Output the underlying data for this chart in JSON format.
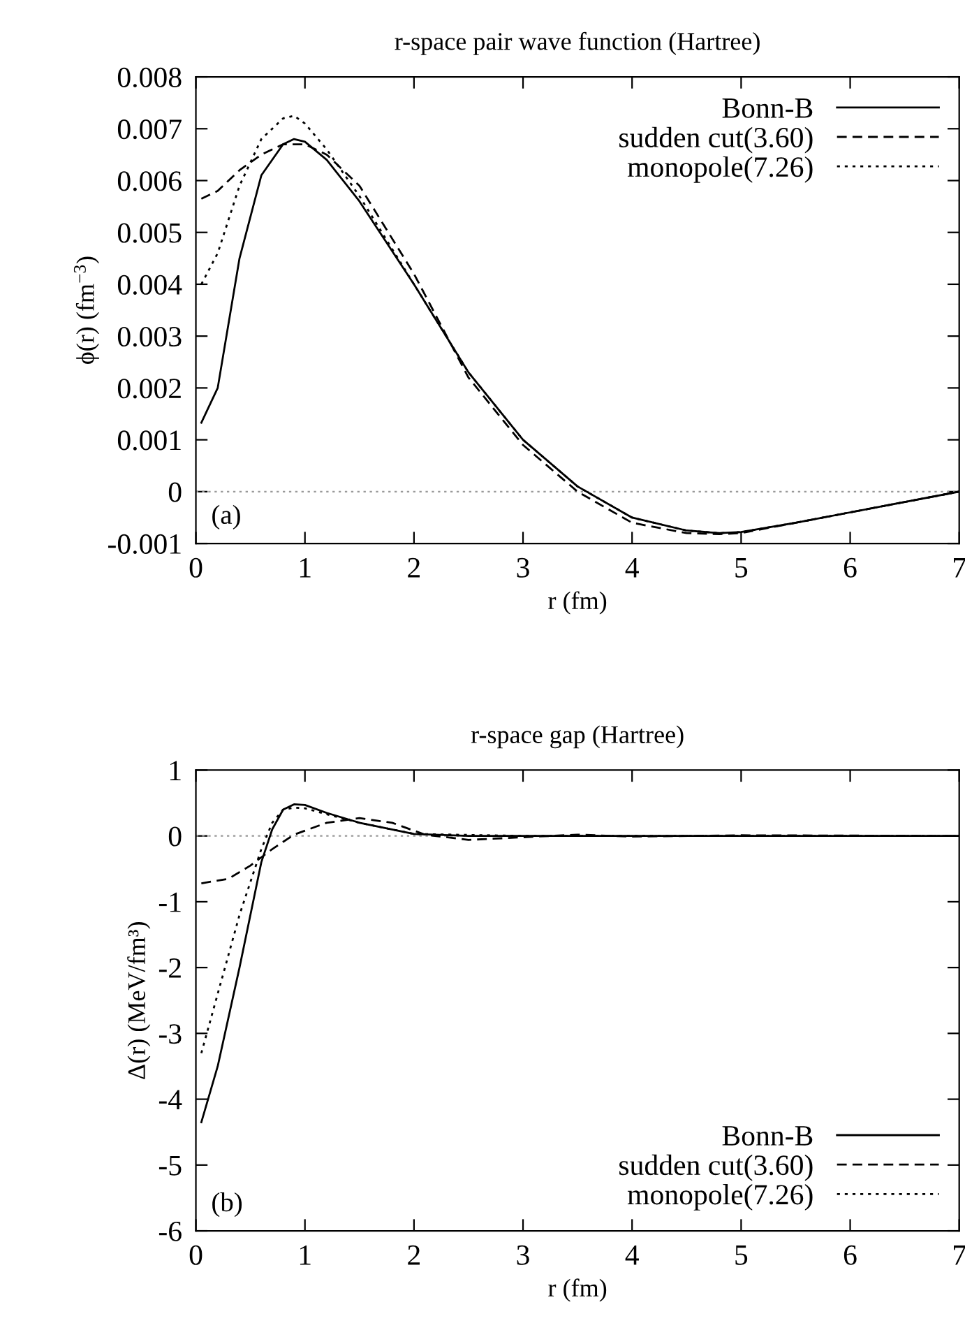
{
  "chart_data": [
    {
      "type": "line",
      "title": "r-space pair wave function (Hartree)",
      "xlabel": "r (fm)",
      "ylabel": "ϕ(r) (fm$^{−3}$)",
      "xlim": [
        0,
        7
      ],
      "xticks": [
        0,
        1,
        2,
        3,
        4,
        5,
        6,
        7
      ],
      "ylim": [
        -0.001,
        0.008
      ],
      "yticks": [
        -0.001,
        0,
        0.001,
        0.002,
        0.003,
        0.004,
        0.005,
        0.006,
        0.007,
        0.008
      ],
      "legend": "top right",
      "grid": false,
      "annotations": [
        "(a)"
      ],
      "ref_lines": [
        {
          "axis": "y",
          "value": 0,
          "color": "#999999",
          "line_style": "dotted"
        }
      ],
      "series": [
        {
          "name": "Bonn-B",
          "color": "#000000",
          "line_style": "solid",
          "x": [
            0.05,
            0.2,
            0.4,
            0.6,
            0.8,
            0.9,
            1.0,
            1.2,
            1.5,
            2.0,
            2.5,
            3.0,
            3.5,
            4.0,
            4.5,
            4.8,
            5.0,
            5.5,
            6.0,
            6.5,
            7.0
          ],
          "values": [
            0.00133,
            0.002,
            0.0045,
            0.0061,
            0.0067,
            0.0068,
            0.00675,
            0.0064,
            0.0056,
            0.004,
            0.0023,
            0.001,
            0.0001,
            -0.0005,
            -0.00075,
            -0.0008,
            -0.00078,
            -0.0006,
            -0.0004,
            -0.0002,
            0.0
          ]
        },
        {
          "name": "sudden cut(3.60)",
          "color": "#000000",
          "line_style": "dashed",
          "x": [
            0.05,
            0.2,
            0.4,
            0.6,
            0.8,
            1.0,
            1.2,
            1.5,
            2.0,
            2.5,
            3.0,
            3.5,
            4.0,
            4.5,
            4.8,
            5.0,
            5.5,
            6.0,
            6.5,
            7.0
          ],
          "values": [
            0.00565,
            0.0058,
            0.0062,
            0.0065,
            0.0067,
            0.0067,
            0.0065,
            0.0059,
            0.0042,
            0.0022,
            0.0009,
            0.0,
            -0.0006,
            -0.0008,
            -0.00082,
            -0.0008,
            -0.0006,
            -0.0004,
            -0.0002,
            0.0
          ]
        },
        {
          "name": "monopole(7.26)",
          "color": "#000000",
          "line_style": "dotted",
          "x": [
            0.05,
            0.2,
            0.4,
            0.6,
            0.8,
            0.9,
            1.0,
            1.2,
            1.5,
            2.0,
            2.5,
            3.0,
            3.5,
            4.0,
            4.5,
            4.8,
            5.0,
            5.5,
            6.0,
            6.5,
            7.0
          ],
          "values": [
            0.004,
            0.0046,
            0.0059,
            0.0068,
            0.0072,
            0.00725,
            0.0071,
            0.0066,
            0.0057,
            0.004,
            0.0023,
            0.001,
            0.0001,
            -0.0005,
            -0.00075,
            -0.0008,
            -0.00078,
            -0.0006,
            -0.0004,
            -0.0002,
            0.0
          ]
        }
      ]
    },
    {
      "type": "line",
      "title": "r-space gap (Hartree)",
      "xlabel": "r (fm)",
      "ylabel": "Δ(r) (MeV/fm³)",
      "xlim": [
        0,
        7
      ],
      "xticks": [
        0,
        1,
        2,
        3,
        4,
        5,
        6,
        7
      ],
      "ylim": [
        -6,
        1
      ],
      "yticks": [
        -6,
        -5,
        -4,
        -3,
        -2,
        -1,
        0,
        1
      ],
      "legend": "bottom right",
      "grid": false,
      "annotations": [
        "(b)"
      ],
      "ref_lines": [
        {
          "axis": "y",
          "value": 0,
          "color": "#999999",
          "line_style": "dotted"
        }
      ],
      "series": [
        {
          "name": "Bonn-B",
          "color": "#000000",
          "line_style": "solid",
          "x": [
            0.05,
            0.2,
            0.4,
            0.6,
            0.7,
            0.8,
            0.9,
            1.0,
            1.2,
            1.5,
            2.0,
            2.5,
            3.0,
            4.0,
            7.0
          ],
          "values": [
            -4.35,
            -3.5,
            -2.0,
            -0.4,
            0.1,
            0.4,
            0.48,
            0.47,
            0.35,
            0.2,
            0.03,
            0,
            0,
            0,
            0
          ]
        },
        {
          "name": "sudden cut(3.60)",
          "color": "#000000",
          "line_style": "dashed",
          "x": [
            0.05,
            0.3,
            0.5,
            0.7,
            0.9,
            1.2,
            1.5,
            1.8,
            2.1,
            2.5,
            3.0,
            3.5,
            4.0,
            5.0,
            7.0
          ],
          "values": [
            -0.72,
            -0.65,
            -0.45,
            -0.2,
            0.02,
            0.2,
            0.27,
            0.2,
            0.02,
            -0.06,
            -0.02,
            0.02,
            -0.01,
            0.01,
            0
          ]
        },
        {
          "name": "monopole(7.26)",
          "color": "#000000",
          "line_style": "dotted",
          "x": [
            0.05,
            0.2,
            0.4,
            0.6,
            0.7,
            0.8,
            0.9,
            1.0,
            1.2,
            1.5,
            2.0,
            3.0,
            7.0
          ],
          "values": [
            -3.3,
            -2.4,
            -1.2,
            -0.2,
            0.2,
            0.4,
            0.43,
            0.42,
            0.33,
            0.2,
            0.03,
            0,
            0
          ]
        }
      ]
    }
  ]
}
